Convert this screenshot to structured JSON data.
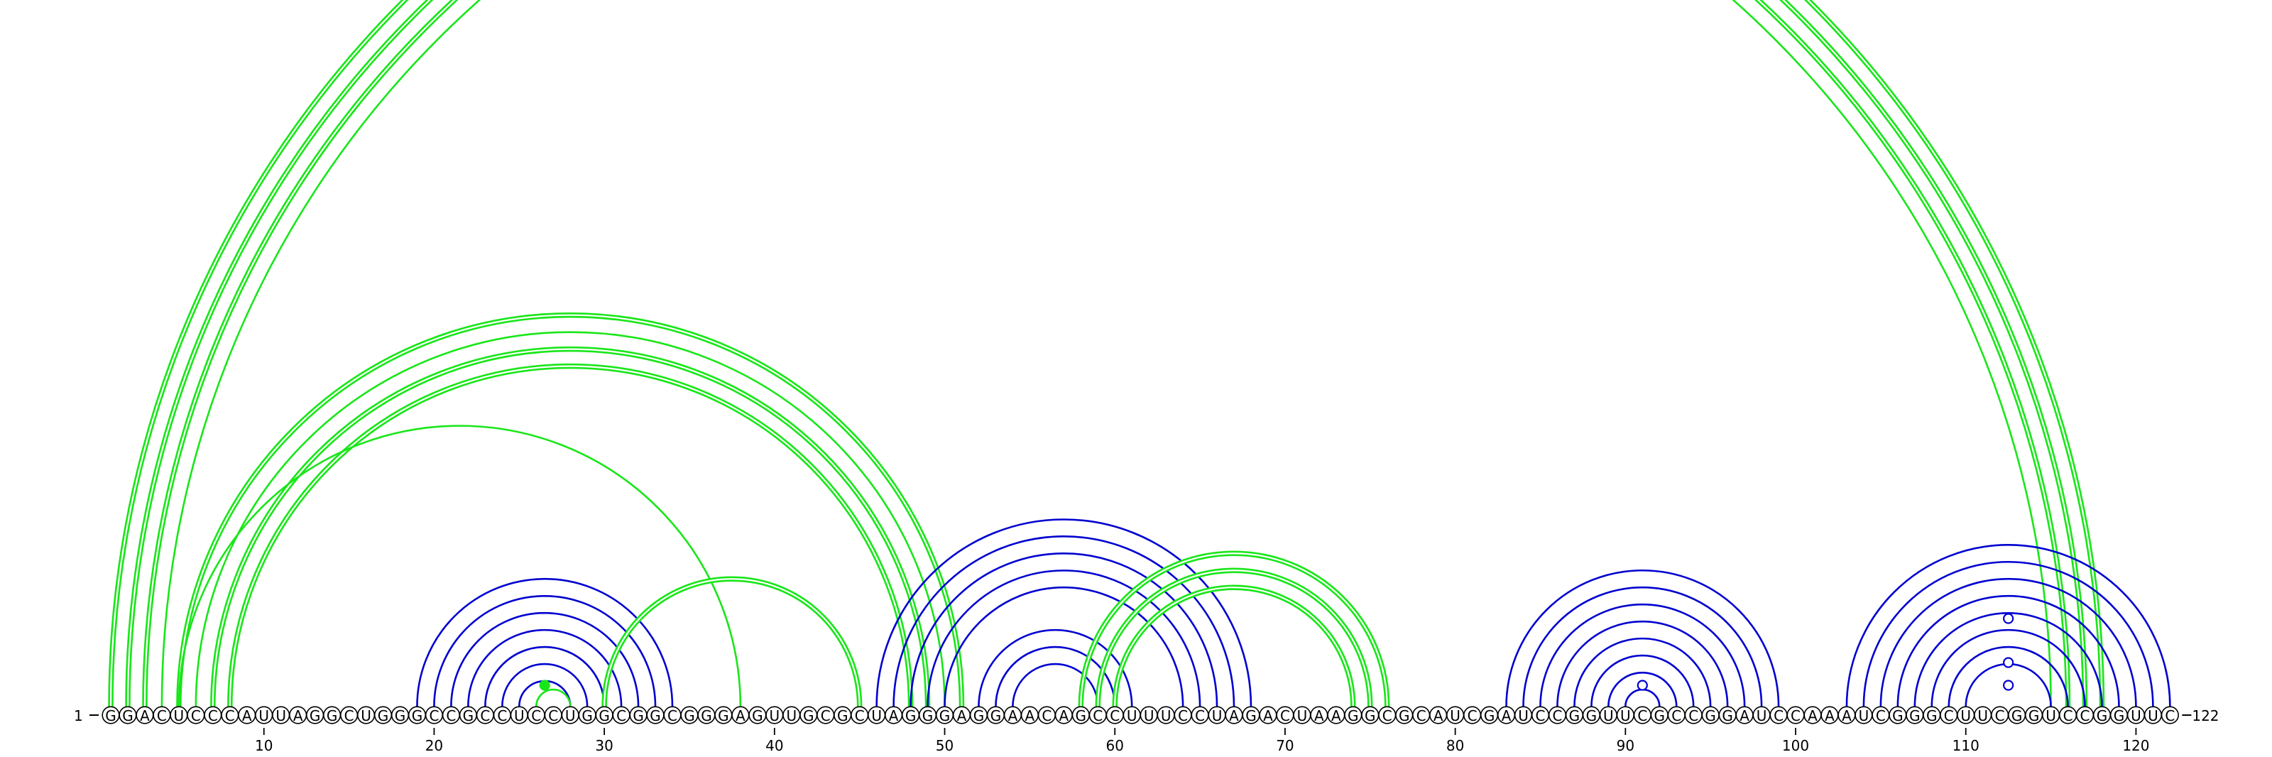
{
  "sequence": "GGACUCCCAUUAGGCUGGGCCGCCUCCUGGCGGCGGGAGUUGCGCUAGGGAGGAACAGCCUUUCCUAGACUAAGGCGCAUCGAUCCGGUUCGCCGGAUCCAAAUCGGGCUUCGGUCCGGUUC",
  "start_label": "1",
  "end_label": "122",
  "ticks": [
    10,
    20,
    30,
    40,
    50,
    60,
    70,
    80,
    90,
    100,
    110,
    120
  ],
  "colors": {
    "blue": "#0000d0",
    "green": "#19e619",
    "marker_fill": "#ffffff"
  },
  "arc_groups": [
    {
      "color": "green",
      "pairs": [
        [
          1,
          118
        ],
        [
          2,
          117
        ],
        [
          3,
          116
        ]
      ],
      "bold": true
    },
    {
      "color": "green",
      "pairs": [
        [
          4,
          115
        ]
      ],
      "bold": false
    },
    {
      "color": "green",
      "pairs": [
        [
          5,
          51
        ]
      ],
      "bold": true
    },
    {
      "color": "green",
      "pairs": [
        [
          6,
          50
        ]
      ],
      "bold": false
    },
    {
      "color": "green",
      "pairs": [
        [
          7,
          49
        ],
        [
          8,
          48
        ]
      ],
      "bold": true
    },
    {
      "color": "green",
      "pairs": [
        [
          5,
          38
        ]
      ],
      "bold": false
    },
    {
      "color": "blue",
      "pairs": [
        [
          19,
          34
        ],
        [
          20,
          33
        ],
        [
          21,
          32
        ],
        [
          22,
          31
        ],
        [
          23,
          30
        ],
        [
          24,
          29
        ],
        [
          25,
          28
        ]
      ],
      "bold": false
    },
    {
      "color": "green",
      "pairs": [
        [
          26,
          28
        ]
      ],
      "bold": false
    },
    {
      "color": "green",
      "pairs": [
        [
          30,
          45
        ]
      ],
      "bold": true
    },
    {
      "color": "blue",
      "pairs": [
        [
          46,
          68
        ],
        [
          47,
          67
        ],
        [
          48,
          66
        ],
        [
          49,
          65
        ],
        [
          50,
          64
        ],
        [
          52,
          61
        ],
        [
          53,
          60
        ],
        [
          54,
          59
        ]
      ],
      "bold": false
    },
    {
      "color": "green",
      "pairs": [
        [
          58,
          76
        ],
        [
          59,
          75
        ],
        [
          60,
          74
        ]
      ],
      "bold": true
    },
    {
      "color": "blue",
      "pairs": [
        [
          83,
          99
        ],
        [
          84,
          98
        ],
        [
          85,
          97
        ],
        [
          86,
          96
        ],
        [
          87,
          95
        ],
        [
          88,
          94
        ],
        [
          89,
          93
        ],
        [
          90,
          92
        ]
      ],
      "bold": false
    },
    {
      "color": "blue",
      "pairs": [
        [
          103,
          122
        ],
        [
          104,
          121
        ],
        [
          105,
          120
        ],
        [
          106,
          119
        ],
        [
          107,
          118
        ],
        [
          108,
          117
        ],
        [
          109,
          116
        ],
        [
          110,
          115
        ]
      ],
      "bold": false
    }
  ],
  "markers": [
    {
      "pos": 26.5,
      "height": 30,
      "filled": true,
      "color": "green"
    },
    {
      "pos": 91,
      "height": 30,
      "filled": false,
      "color": "blue"
    },
    {
      "pos": 112.5,
      "height": 30,
      "filled": false,
      "color": "blue"
    },
    {
      "pos": 112.5,
      "height": 62,
      "filled": false,
      "color": "blue"
    },
    {
      "pos": 112.5,
      "height": 124,
      "filled": false,
      "color": "blue"
    }
  ]
}
